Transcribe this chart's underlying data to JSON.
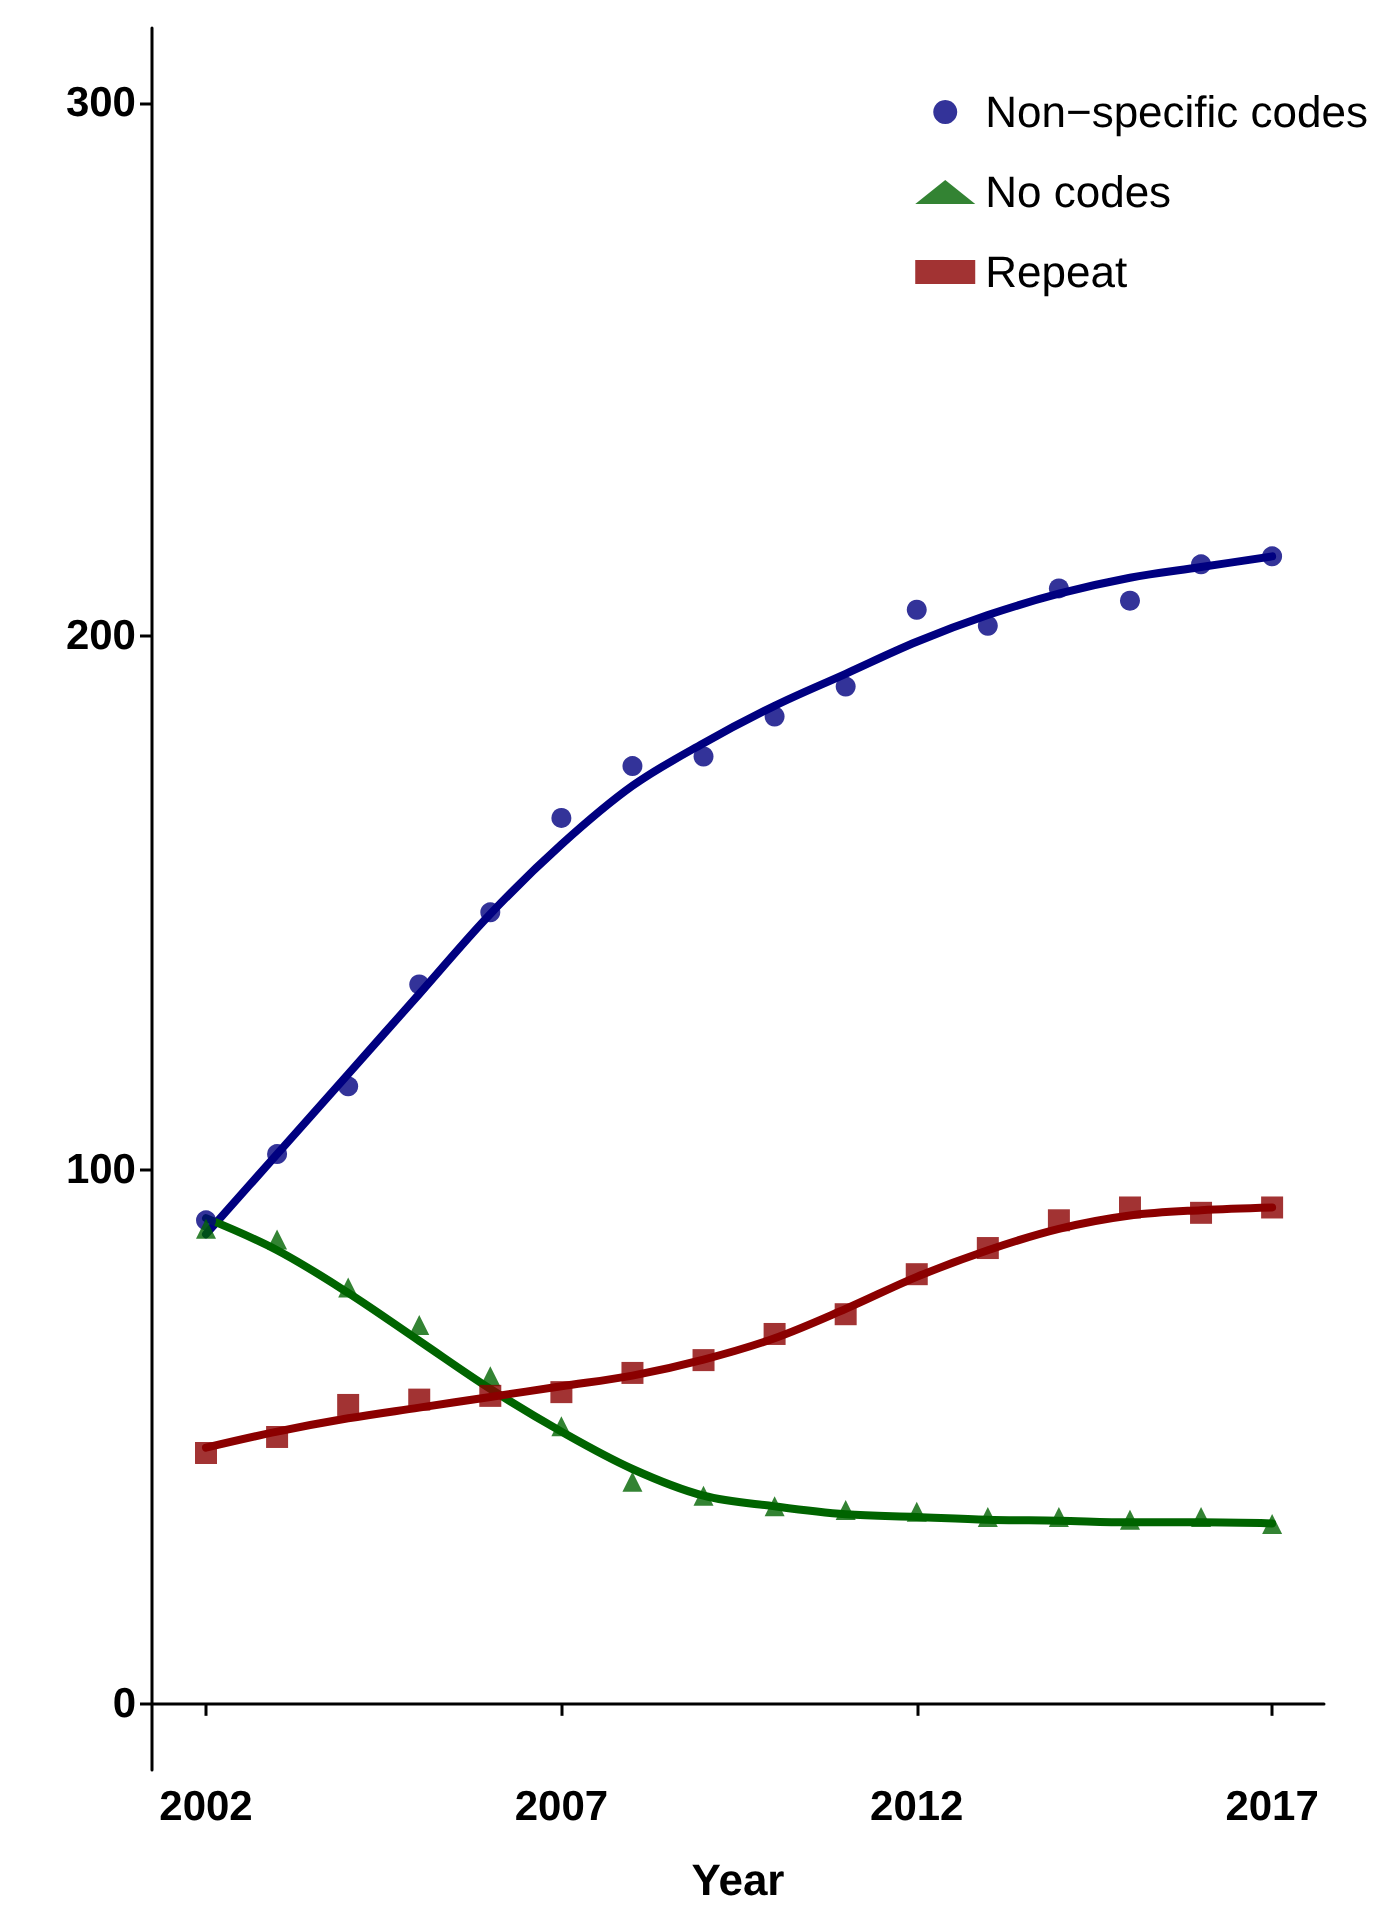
{
  "chart_data": {
    "type": "scatter",
    "xlabel": "Year",
    "x": [
      2002,
      2003,
      2004,
      2005,
      2006,
      2007,
      2008,
      2009,
      2010,
      2011,
      2012,
      2013,
      2014,
      2015,
      2016,
      2017
    ],
    "series": [
      {
        "name": "Non−specific codes",
        "color": "#000080",
        "marker": "circle",
        "values": [
          90.6,
          103,
          115.7,
          134.8,
          148.3,
          166,
          175.7,
          177.5,
          185,
          190.6,
          205,
          202,
          209,
          206.7,
          213.5,
          215
        ]
      },
      {
        "name": "No codes",
        "color": "#006400",
        "marker": "triangle",
        "values": [
          89,
          87,
          78,
          71,
          61.4,
          52,
          41.6,
          39,
          37,
          36.3,
          36,
          35,
          35,
          34.5,
          35,
          33.7
        ]
      },
      {
        "name": "Repeat",
        "color": "#8b0000",
        "marker": "square",
        "values": [
          47,
          50,
          56,
          57,
          57.7,
          58.4,
          62,
          64.4,
          69.3,
          73,
          80.5,
          85.4,
          90.6,
          93,
          92,
          93
        ]
      },
      {
        "type": "line",
        "color": "#000080",
        "marker": "none",
        "line_style": "solid",
        "values": [
          88,
          103,
          118,
          133,
          148,
          161,
          172,
          180,
          187,
          193,
          199,
          204,
          208,
          211,
          213,
          215
        ]
      },
      {
        "type": "line",
        "color": "#006400",
        "marker": "none",
        "line_style": "solid",
        "values": [
          91,
          85,
          77,
          68,
          59,
          51,
          44,
          39,
          37,
          35.5,
          35,
          34.5,
          34.3,
          34,
          34,
          33.8
        ]
      },
      {
        "type": "line",
        "color": "#8b0000",
        "marker": "none",
        "line_style": "solid",
        "values": [
          48,
          51,
          53.5,
          55.5,
          57.5,
          59.5,
          61.5,
          64.5,
          68.5,
          74,
          80,
          85,
          89,
          91.5,
          92.5,
          93
        ]
      }
    ],
    "xlim": [
      2001.24,
      2017.73
    ],
    "xticks": [
      2002,
      2007,
      2012,
      2017
    ],
    "ylim": [
      -12.4,
      314
    ],
    "yticks": [
      0,
      100,
      200,
      300
    ],
    "grid": false,
    "legend": "top right"
  }
}
